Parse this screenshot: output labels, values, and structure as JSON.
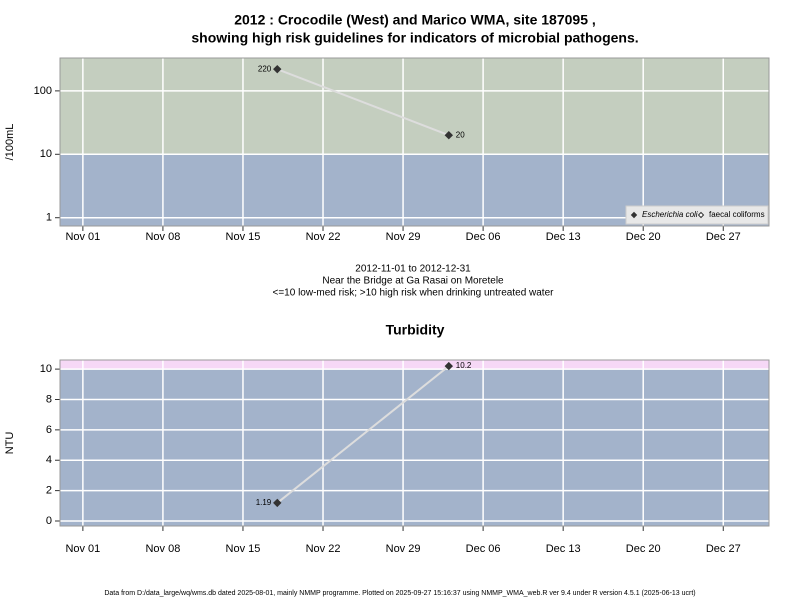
{
  "footer": "Data from D:/data_large/wq/wms.db dated 2025-08-01, mainly NMMP programme. Plotted on 2025-09-27 15:16:37 using NMMP_WMA_web.R ver 9.4 under R version 4.5.1 (2025-06-13 ucrt)",
  "chart_data": [
    {
      "type": "line",
      "title": [
        "2012 : Crocodile (West) and Marico WMA, site 187095 ,",
        "showing high risk guidelines for indicators of microbial pathogens."
      ],
      "notes": [
        "2012-11-01 to 2012-12-31",
        "Near the Bridge at Ga Rasai on Moretele",
        "<=10 low-med risk; >10 high risk when drinking untreated water"
      ],
      "y_label": "/100mL",
      "log_scale": true,
      "x": [
        "2012-11-18",
        "2012-12-03"
      ],
      "series": [
        {
          "name": "Escherichia coli",
          "color": "#333333",
          "line_color": "#dddddd",
          "marker": "filled",
          "values": [
            220,
            20
          ]
        },
        {
          "name": "faecal coliforms",
          "color": "#333333",
          "line_color": "#dddddd",
          "marker": "open",
          "values": [
            null,
            null
          ]
        }
      ],
      "threshold": 10,
      "band_colors": {
        "below": "#a3b3cb",
        "above": "#c4cebf"
      },
      "xlim": [
        "2012-10-30",
        "2012-12-31"
      ],
      "xticks": [
        {
          "value": "2012-11-01",
          "label": "Nov 01"
        },
        {
          "value": "2012-11-08",
          "label": "Nov 08"
        },
        {
          "value": "2012-11-15",
          "label": "Nov 15"
        },
        {
          "value": "2012-11-22",
          "label": "Nov 22"
        },
        {
          "value": "2012-11-29",
          "label": "Nov 29"
        },
        {
          "value": "2012-12-06",
          "label": "Dec 06"
        },
        {
          "value": "2012-12-13",
          "label": "Dec 13"
        },
        {
          "value": "2012-12-20",
          "label": "Dec 20"
        },
        {
          "value": "2012-12-27",
          "label": "Dec 27"
        }
      ],
      "ylim": [
        0.74,
        330
      ],
      "yticks": [
        1,
        10,
        100
      ],
      "grid": true,
      "legend": "lower right"
    },
    {
      "type": "line",
      "title": [
        "Turbidity"
      ],
      "y_label": "NTU",
      "log_scale": false,
      "x": [
        "2012-11-18",
        "2012-12-03"
      ],
      "series": [
        {
          "name": "Turbidity",
          "color": "#333333",
          "line_color": "#dddddd",
          "marker": "filled",
          "values": [
            1.19,
            10.2
          ]
        }
      ],
      "threshold": 10,
      "band_colors": {
        "below": "#a3b3cb",
        "above": "#f6d8f6"
      },
      "xlim": [
        "2012-10-30",
        "2012-12-31"
      ],
      "xticks": [
        {
          "value": "2012-11-01",
          "label": "Nov 01"
        },
        {
          "value": "2012-11-08",
          "label": "Nov 08"
        },
        {
          "value": "2012-11-15",
          "label": "Nov 15"
        },
        {
          "value": "2012-11-22",
          "label": "Nov 22"
        },
        {
          "value": "2012-11-29",
          "label": "Nov 29"
        },
        {
          "value": "2012-12-06",
          "label": "Dec 06"
        },
        {
          "value": "2012-12-13",
          "label": "Dec 13"
        },
        {
          "value": "2012-12-20",
          "label": "Dec 20"
        },
        {
          "value": "2012-12-27",
          "label": "Dec 27"
        }
      ],
      "ylim": [
        -0.33,
        10.6
      ],
      "yticks": [
        0,
        2,
        4,
        6,
        8,
        10
      ],
      "grid": true
    }
  ]
}
